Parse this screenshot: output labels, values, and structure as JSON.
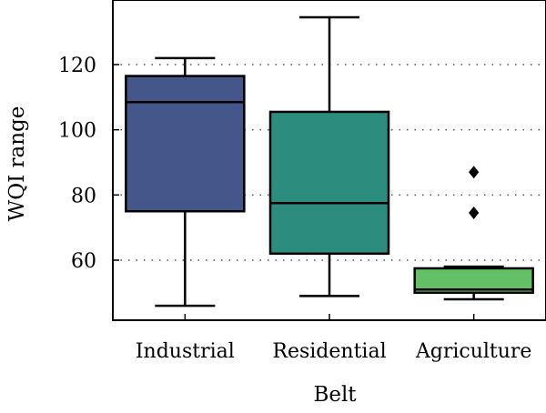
{
  "chart_data": {
    "type": "box",
    "xlabel": "Belt",
    "ylabel": "WQI range",
    "ylim": [
      40,
      140
    ],
    "yticks": [
      60,
      80,
      100,
      120
    ],
    "grid": "horizontal dotted",
    "categories": [
      "Industrial",
      "Residential",
      "Agriculture"
    ],
    "boxes": [
      {
        "category": "Industrial",
        "min": 46,
        "q1": 75,
        "median": 108.5,
        "q3": 116.5,
        "max": 122,
        "outliers": [],
        "color": "#45568a"
      },
      {
        "category": "Residential",
        "min": 49,
        "q1": 62,
        "median": 77.5,
        "q3": 105.5,
        "max": 134.5,
        "outliers": [],
        "color": "#2c8c7e"
      },
      {
        "category": "Agriculture",
        "min": 48,
        "q1": 50,
        "median": 51,
        "q3": 57.5,
        "max": 58,
        "outliers": [
          74.5,
          87
        ],
        "color": "#63c064"
      }
    ]
  }
}
